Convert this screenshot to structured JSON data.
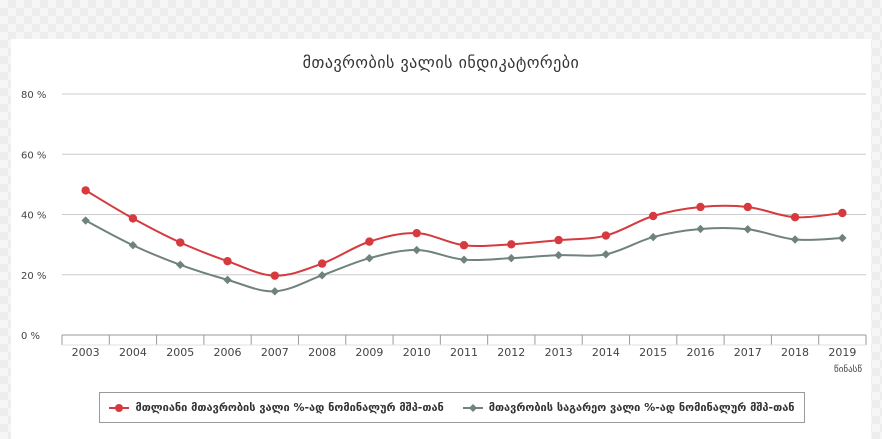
{
  "chart_data": {
    "type": "line",
    "title": "მთავრობის ვალის ინდიკატორები",
    "xlabel": "წინასწ",
    "ylabel": "",
    "categories": [
      "2003",
      "2004",
      "2005",
      "2006",
      "2007",
      "2008",
      "2009",
      "2010",
      "2011",
      "2012",
      "2013",
      "2014",
      "2015",
      "2016",
      "2017",
      "2018",
      "2019"
    ],
    "ylim": [
      0,
      80
    ],
    "yticks": [
      0,
      20,
      40,
      60,
      80
    ],
    "ytick_labels": [
      "0 %",
      "20 %",
      "40 %",
      "60 %",
      "80 %"
    ],
    "grid": true,
    "legend_position": "bottom",
    "series": [
      {
        "name": "მთლიანი მთავრობის ვალი %-ად ნომინალურ მშპ-თან",
        "color": "#d63a3f",
        "marker": "circle",
        "values": [
          48,
          38.7,
          30.7,
          24.5,
          19.7,
          23.7,
          31,
          33.8,
          29.8,
          30.1,
          31.5,
          33,
          39.5,
          42.5,
          42.5,
          39.1,
          40.5
        ]
      },
      {
        "name": "მთავრობის საგარეო ვალი %-ად ნომინალურ მშპ-თან",
        "color": "#6f827e",
        "marker": "diamond",
        "values": [
          38,
          29.8,
          23.3,
          18.3,
          14.5,
          19.8,
          25.5,
          28.2,
          25,
          25.5,
          26.5,
          26.8,
          32.5,
          35.2,
          35.1,
          31.7,
          32.2
        ]
      }
    ]
  }
}
